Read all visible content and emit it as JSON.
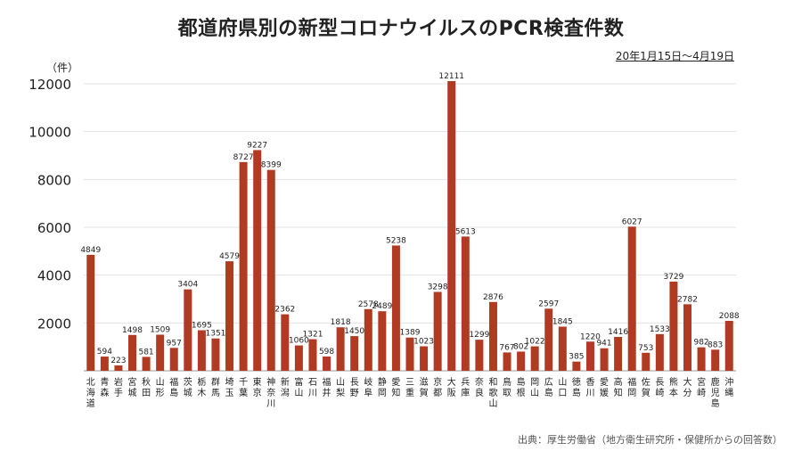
{
  "title": "都道府県別の新型コロナウイルスのPCR検査件数",
  "period": "20年1月15日〜4月19日",
  "unit": "（件）",
  "source": "出典：厚生労働省（地方衛生研究所・保健所からの回答数）",
  "colors": {
    "bar": "#b03a22",
    "grid": "#e3e3e3",
    "axis": "#9a9a9a"
  },
  "chart_data": {
    "type": "bar",
    "ylim": [
      0,
      12000
    ],
    "yticks": [
      2000,
      4000,
      6000,
      8000,
      10000,
      12000
    ],
    "grid": true,
    "categories": [
      "北海道",
      "青森",
      "岩手",
      "宮城",
      "秋田",
      "山形",
      "福島",
      "茨城",
      "栃木",
      "群馬",
      "埼玉",
      "千葉",
      "東京",
      "神奈川",
      "新潟",
      "富山",
      "石川",
      "福井",
      "山梨",
      "長野",
      "岐阜",
      "静岡",
      "愛知",
      "三重",
      "滋賀",
      "京都",
      "大阪",
      "兵庫",
      "奈良",
      "和歌山",
      "鳥取",
      "島根",
      "岡山",
      "広島",
      "山口",
      "徳島",
      "香川",
      "愛媛",
      "高知",
      "福岡",
      "佐賀",
      "長崎",
      "熊本",
      "大分",
      "宮崎",
      "鹿児島",
      "沖縄"
    ],
    "values": [
      4849,
      594,
      223,
      1498,
      581,
      1509,
      957,
      3404,
      1695,
      1351,
      4579,
      8727,
      9227,
      8399,
      2362,
      1060,
      1321,
      598,
      1818,
      1450,
      2578,
      2489,
      5238,
      1389,
      1023,
      3298,
      12111,
      5613,
      1299,
      2876,
      767,
      802,
      1022,
      2597,
      1845,
      385,
      1220,
      941,
      1416,
      6027,
      753,
      1533,
      3729,
      2782,
      982,
      883,
      2088
    ]
  }
}
